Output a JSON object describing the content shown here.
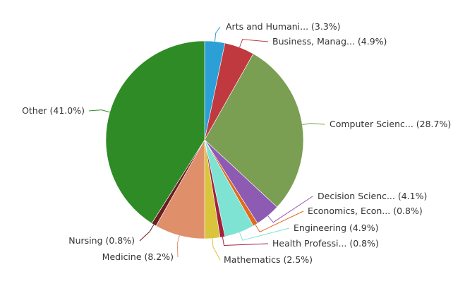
{
  "chart_data": {
    "type": "pie",
    "title": "",
    "slices": [
      {
        "label": "Arts and Humani... (3.3%)",
        "value": 3.3,
        "color": "#2b9fd6"
      },
      {
        "label": "Business, Manag... (4.9%)",
        "value": 4.9,
        "color": "#c0393f"
      },
      {
        "label": "Computer Scienc... (28.7%)",
        "value": 28.7,
        "color": "#7a9e52"
      },
      {
        "label": "Decision Scienc... (4.1%)",
        "value": 4.1,
        "color": "#8e5bb2"
      },
      {
        "label": "Economics, Econ... (0.8%)",
        "value": 0.8,
        "color": "#e06b1f"
      },
      {
        "label": "Engineering (4.9%)",
        "value": 4.9,
        "color": "#7ee3d2"
      },
      {
        "label": "Health Professi... (0.8%)",
        "value": 0.8,
        "color": "#a3213d"
      },
      {
        "label": "Mathematics (2.5%)",
        "value": 2.5,
        "color": "#d9c43c"
      },
      {
        "label": "Medicine (8.2%)",
        "value": 8.2,
        "color": "#e08f6b"
      },
      {
        "label": "Nursing (0.8%)",
        "value": 0.8,
        "color": "#6b1e22"
      },
      {
        "label": "Other (41.0%)",
        "value": 41.0,
        "color": "#2e8b25"
      }
    ]
  }
}
